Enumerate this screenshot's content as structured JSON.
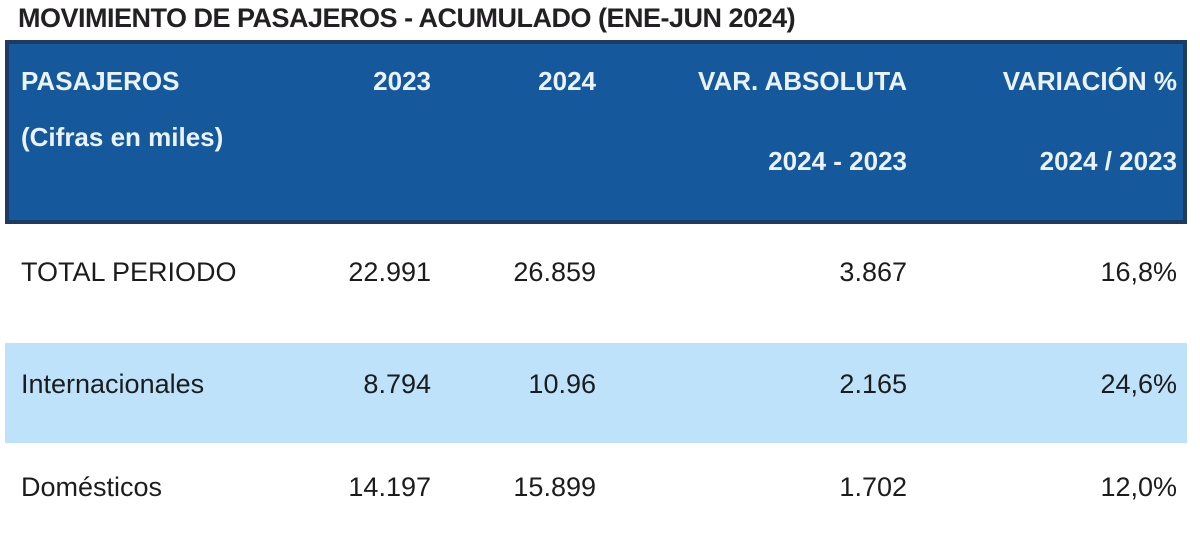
{
  "title": "MOVIMIENTO DE PASAJEROS - ACUMULADO (ENE-JUN 2024)",
  "table": {
    "header": {
      "col1_line1": "PASAJEROS",
      "col1_line2": "(Cifras en miles)",
      "col2": "2023",
      "col3": "2024",
      "col4_line1": "VAR. ABSOLUTA",
      "col4_line2": "2024 - 2023",
      "col5_line1": "VARIACIÓN %",
      "col5_line2": "2024 / 2023"
    },
    "rows": [
      {
        "label": "TOTAL PERIODO",
        "y2023": "22.991",
        "y2024": "26.859",
        "var_abs": "3.867",
        "var_pct": "16,8%",
        "highlight": false
      },
      {
        "label": "Internacionales",
        "y2023": "8.794",
        "y2024": "10.96",
        "var_abs": "2.165",
        "var_pct": "24,6%",
        "highlight": true
      },
      {
        "label": "Domésticos",
        "y2023": "14.197",
        "y2024": "15.899",
        "var_abs": "1.702",
        "var_pct": "12,0%",
        "highlight": false
      }
    ]
  },
  "colors": {
    "header_bg": "#15589C",
    "header_border": "#1E3B63",
    "header_text": "#EAF3FB",
    "highlight_row_bg": "#BDE2F9",
    "body_text": "#1C1C1C",
    "title_text": "#232023"
  },
  "chart_data": {
    "type": "table",
    "title": "MOVIMIENTO DE PASAJEROS - ACUMULADO (ENE-JUN 2024)",
    "unit": "Cifras en miles",
    "columns": [
      "PASAJEROS (Cifras en miles)",
      "2023",
      "2024",
      "VAR. ABSOLUTA 2024 - 2023",
      "VARIACIÓN % 2024 / 2023"
    ],
    "rows": [
      [
        "TOTAL PERIODO",
        "22.991",
        "26.859",
        "3.867",
        "16,8%"
      ],
      [
        "Internacionales",
        "8.794",
        "10.96",
        "2.165",
        "24,6%"
      ],
      [
        "Domésticos",
        "14.197",
        "15.899",
        "1.702",
        "12,0%"
      ]
    ]
  }
}
